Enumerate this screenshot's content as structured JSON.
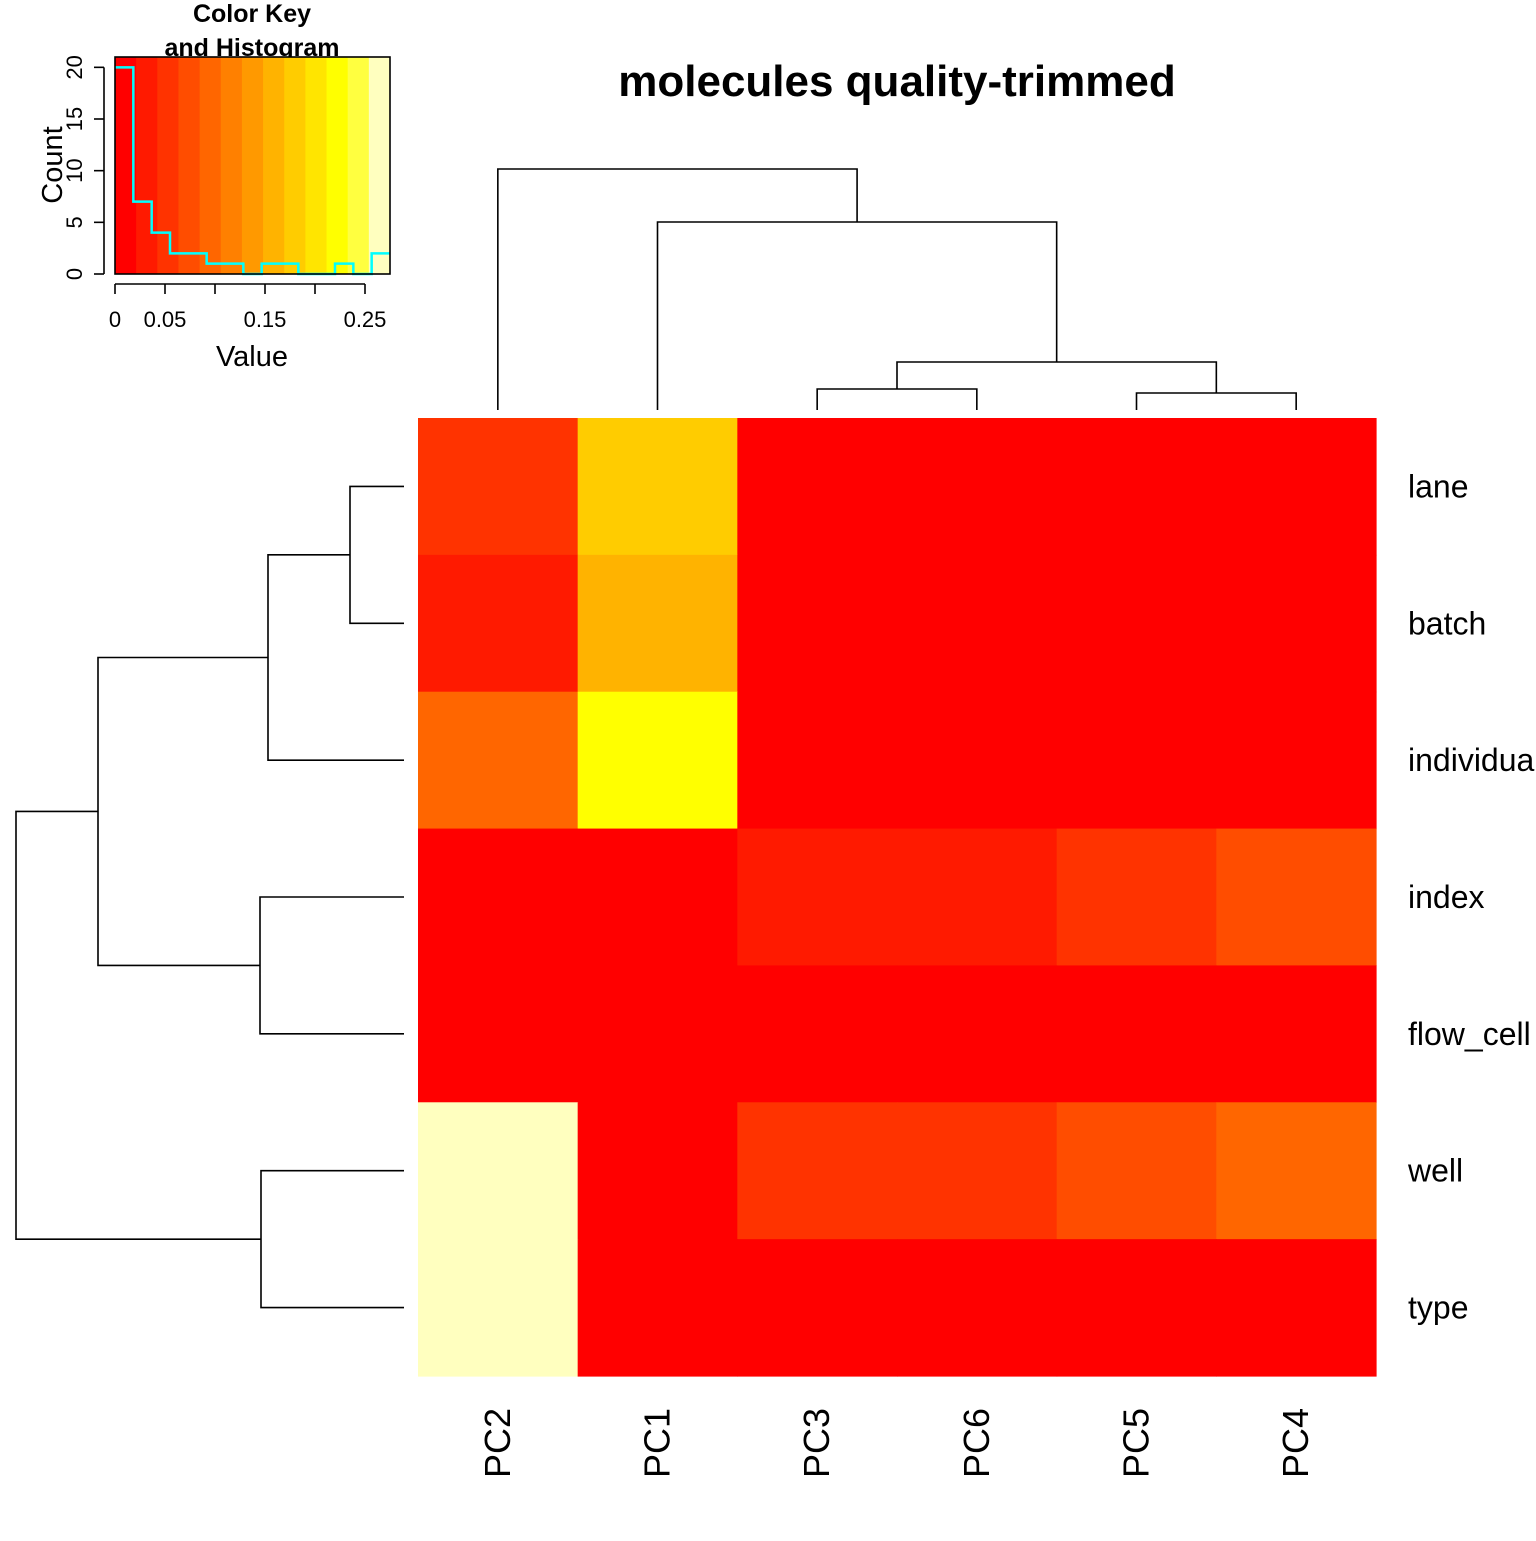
{
  "chart_data": {
    "type": "heatmap",
    "title": "molecules quality-trimmed",
    "columns": [
      "PC2",
      "PC1",
      "PC3",
      "PC6",
      "PC5",
      "PC4"
    ],
    "rows": [
      "lane",
      "batch",
      "individual",
      "index",
      "flow_cell",
      "well",
      "type"
    ],
    "values": [
      [
        0.05,
        0.17,
        0.0,
        0.0,
        0.0,
        0.0
      ],
      [
        0.025,
        0.15,
        0.02,
        0.02,
        0.0,
        0.0
      ],
      [
        0.1,
        0.23,
        0.0,
        0.02,
        0.0,
        0.0
      ],
      [
        0.02,
        0.0,
        0.04,
        0.04,
        0.06,
        0.07
      ],
      [
        0.0,
        0.0,
        0.0,
        0.0,
        0.0,
        0.0
      ],
      [
        0.275,
        0.0,
        0.045,
        0.06,
        0.08,
        0.09
      ],
      [
        0.275,
        0.0,
        0.0,
        0.0,
        0.015,
        0.015
      ]
    ],
    "color_scale": {
      "range": [
        0,
        0.275
      ],
      "colors": [
        "#FF0000",
        "#FF1A00",
        "#FF3300",
        "#FF4D00",
        "#FF6600",
        "#FF8000",
        "#FF9900",
        "#FFB300",
        "#FFCC00",
        "#FFE500",
        "#FFFF00",
        "#FFFF40",
        "#FFFFBF"
      ]
    },
    "key": {
      "title_line1": "Color Key",
      "title_line2": "and Histogram",
      "xlabel": "Value",
      "ylabel": "Count",
      "x_ticks": [
        0,
        0.05,
        0.15,
        0.25
      ],
      "x_tick_labels": [
        "0",
        "0.05",
        "0.15",
        "0.25"
      ],
      "y_ticks": [
        0,
        5,
        10,
        15,
        20
      ],
      "y_tick_labels": [
        "0",
        "5",
        "10",
        "15",
        "20"
      ],
      "histogram_counts": [
        20,
        7,
        4,
        2,
        2,
        1,
        1,
        0,
        1,
        1,
        0,
        0,
        1,
        0,
        2
      ],
      "histogram_color": "#00FFFF"
    }
  }
}
